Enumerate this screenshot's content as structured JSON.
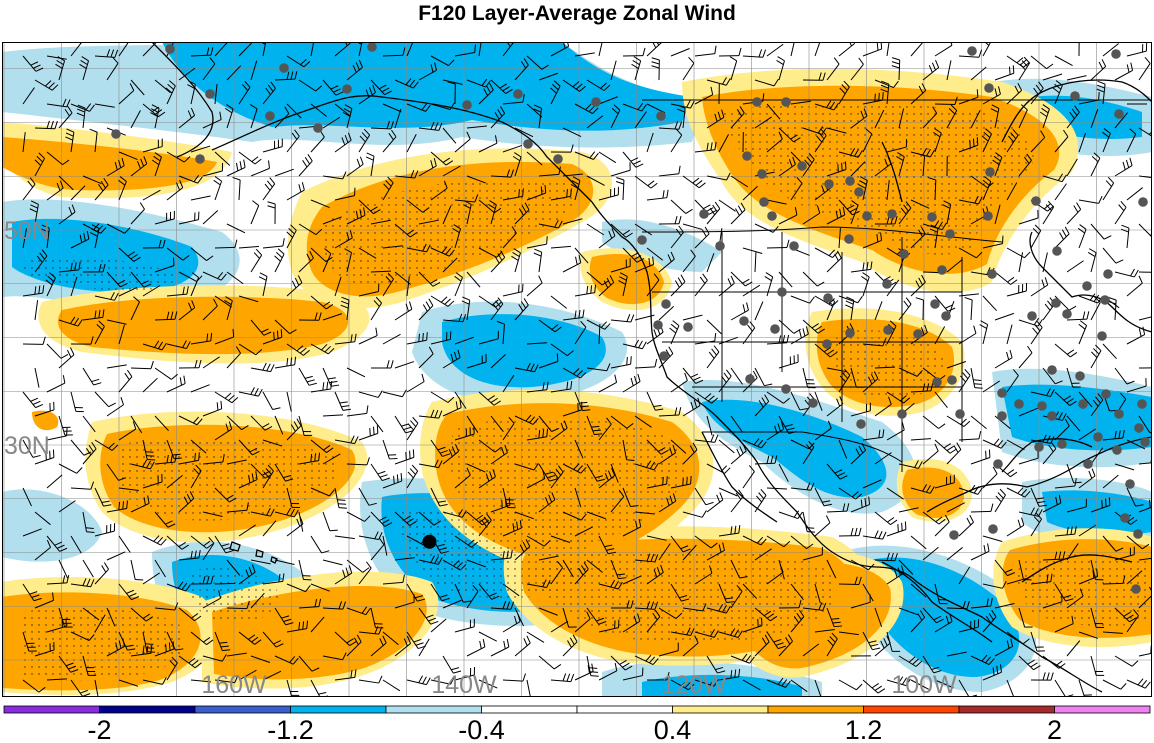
{
  "title": "F120 Layer-Average Zonal Wind",
  "map": {
    "lat_labels": [
      {
        "text": "50N",
        "lat": 50
      },
      {
        "text": "30N",
        "lat": 30
      }
    ],
    "lon_labels": [
      {
        "text": "160W",
        "lon": -160
      },
      {
        "text": "140W",
        "lon": -140
      },
      {
        "text": "120W",
        "lon": -120
      },
      {
        "text": "100W",
        "lon": -100
      }
    ],
    "highlight_marker": {
      "lon": -143,
      "lat": 21
    }
  },
  "colorbar": {
    "colors": [
      "#8a2be2",
      "#00008b",
      "#3a5fcd",
      "#00b2ee",
      "#b2dfee",
      "#ffffff",
      "#ffffff",
      "#ffec8b",
      "#ffa500",
      "#ff4500",
      "#a52a2a",
      "#ee82ee"
    ],
    "labels": [
      {
        "text": "-2",
        "edge": 1
      },
      {
        "text": "-1.2",
        "edge": 3
      },
      {
        "text": "-0.4",
        "edge": 5
      },
      {
        "text": "0.4",
        "edge": 7
      },
      {
        "text": "1.2",
        "edge": 9
      },
      {
        "text": "2",
        "edge": 11
      }
    ]
  }
}
